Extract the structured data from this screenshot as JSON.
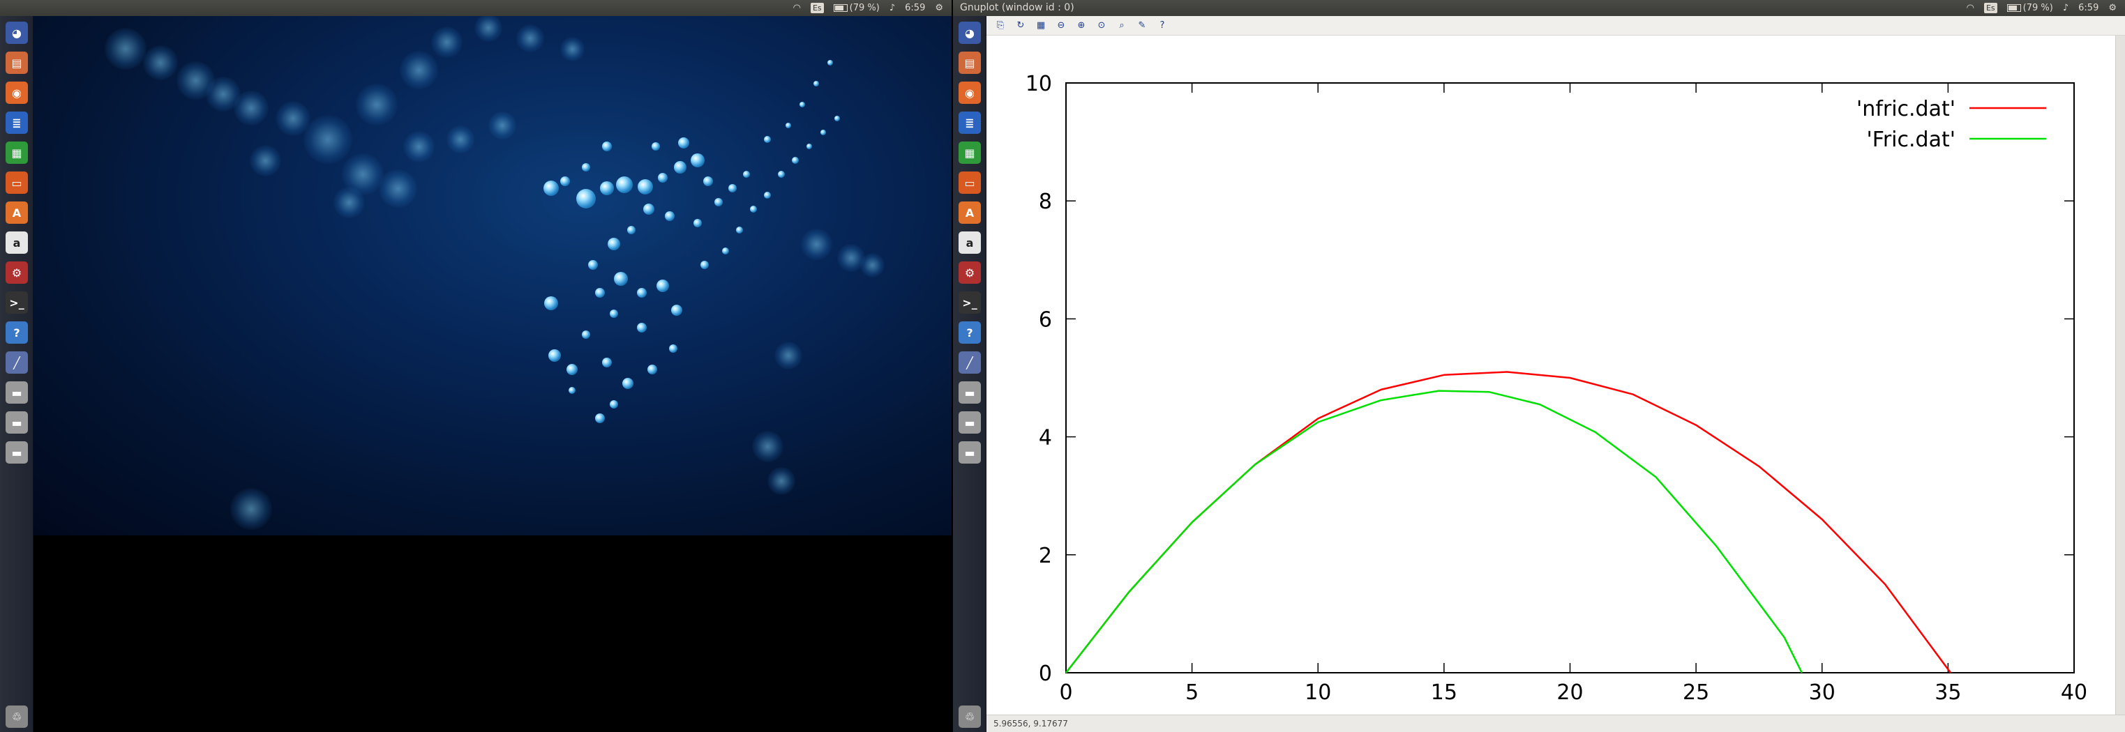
{
  "left_panel": {
    "battery": "(79 %)",
    "time": "6:59",
    "keyboard_layout": "Es"
  },
  "right_panel": {
    "window_title": "Gnuplot (window id : 0)",
    "battery": "(79 %)",
    "time": "6:59",
    "keyboard_layout": "Es"
  },
  "launcher_items": [
    "dash-icon",
    "files-icon",
    "firefox-icon",
    "writer-icon",
    "calc-icon",
    "impress-icon",
    "software-center-icon",
    "amazon-icon",
    "system-settings-icon",
    "terminal-icon",
    "help-icon",
    "gnuplot-icon",
    "drive-icon",
    "drive-icon",
    "drive-icon"
  ],
  "gnuplot": {
    "toolbar": [
      "copy-to-clipboard-icon",
      "replot-icon",
      "toggle-grid-icon",
      "zoom-previous-icon",
      "zoom-next-icon",
      "autoscale-icon",
      "zoom-icon",
      "settings-icon",
      "help-icon"
    ],
    "status_text": "5.96556, 9.17677"
  },
  "chart_data": {
    "type": "line",
    "title": "",
    "xlabel": "",
    "ylabel": "",
    "xlim": [
      0,
      40
    ],
    "ylim": [
      0,
      10
    ],
    "xticks": [
      0,
      5,
      10,
      15,
      20,
      25,
      30,
      35,
      40
    ],
    "yticks": [
      0,
      2,
      4,
      6,
      8,
      10
    ],
    "grid": false,
    "legend_position": "top-right",
    "series": [
      {
        "name": "'nfric.dat'",
        "color": "#ff0000",
        "x": [
          0,
          2.5,
          5,
          7.5,
          10,
          12.5,
          15,
          17.5,
          20,
          22.5,
          25,
          27.5,
          30,
          32.5,
          35.1
        ],
        "y": [
          0,
          1.37,
          2.55,
          3.53,
          4.31,
          4.8,
          5.05,
          5.1,
          5.0,
          4.72,
          4.2,
          3.5,
          2.6,
          1.5,
          0
        ]
      },
      {
        "name": "'Fric.dat'",
        "color": "#00e000",
        "x": [
          0,
          2.5,
          5,
          7.5,
          10,
          12.5,
          14.8,
          16.8,
          18.8,
          21,
          23.4,
          25.8,
          28.5,
          29.2
        ],
        "y": [
          0,
          1.37,
          2.55,
          3.53,
          4.25,
          4.62,
          4.78,
          4.76,
          4.55,
          4.08,
          3.32,
          2.15,
          0.6,
          0
        ]
      }
    ]
  }
}
